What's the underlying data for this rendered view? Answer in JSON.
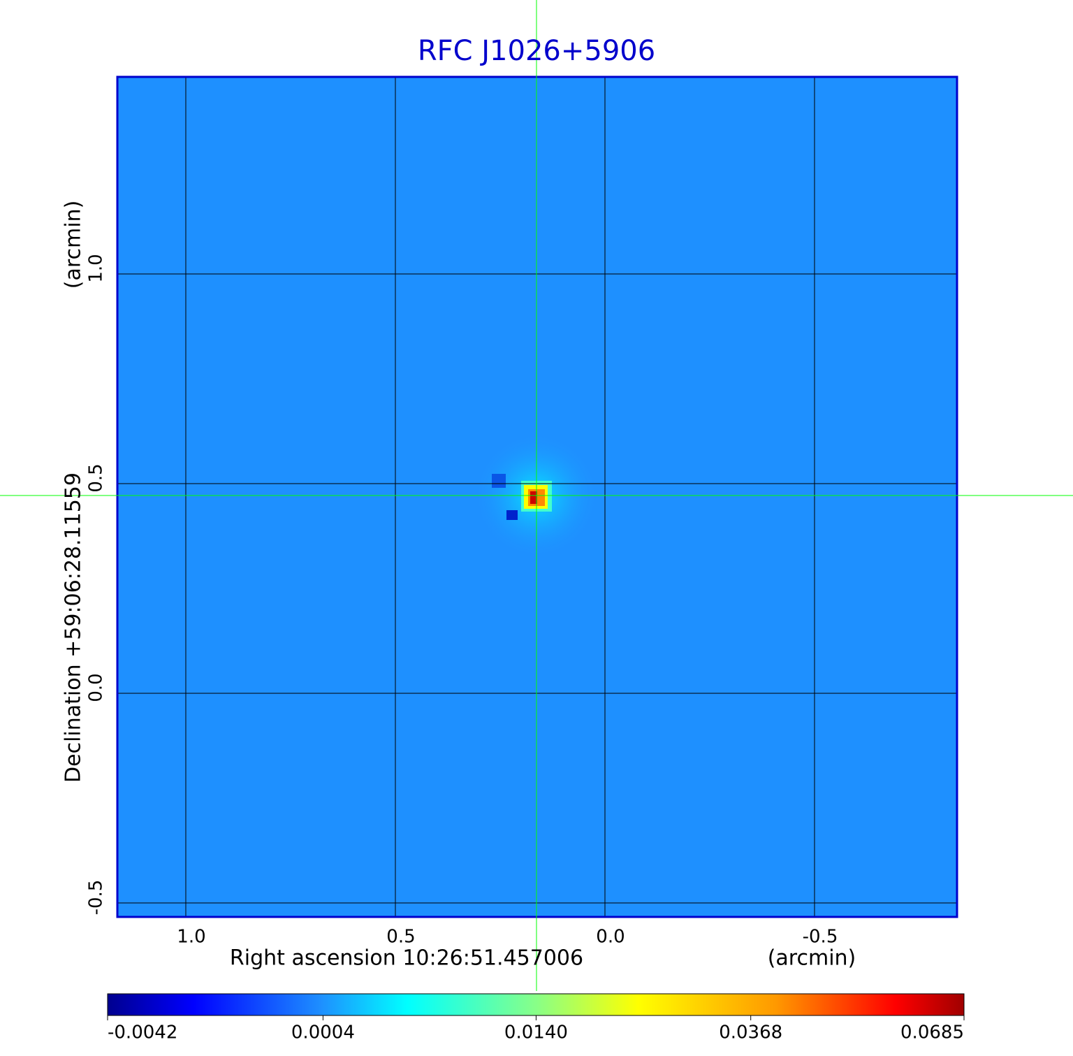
{
  "chart_data": {
    "type": "image",
    "title": "RFC J1026+5906",
    "xlabel": "Right ascension  10:26:51.457006",
    "xunit": "(arcmin)",
    "ylabel": "Declination  +59:06:28.11559",
    "yunit": "(arcmin)",
    "xlim": [
      1.1633,
      -0.84
    ],
    "xticks": [
      {
        "value": 1,
        "label": "1.0"
      },
      0.5,
      {
        "value": 0,
        "label": "0.0"
      },
      -0.5
    ],
    "ylim": [
      -0.5333,
      1.47
    ],
    "yticks": [
      -0.5,
      {
        "value": 0,
        "label": "0.0"
      },
      0.5,
      {
        "value": 1,
        "label": "1.0"
      }
    ],
    "grid": true,
    "colorbar": {
      "scale": "sqrt",
      "lim": [
        -0.0042,
        0.0685
      ],
      "ticks": [
        -0.0042,
        0.0004,
        {
          "value": 0.014,
          "label": "0.0140"
        },
        0.0368,
        0.0685
      ]
    }
  }
}
